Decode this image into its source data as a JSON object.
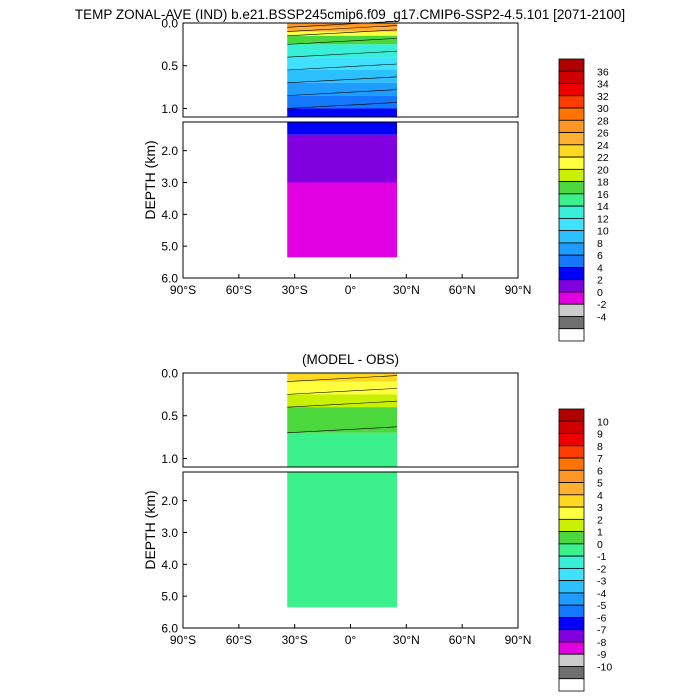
{
  "title": "TEMP ZONAL-AVE (IND) b.e21.BSSP245cmip6.f09_g17.CMIP6-SSP2-4.5.101 [2071-2100]",
  "chart_data": [
    {
      "type": "heatmap",
      "title": "",
      "ylabel": "DEPTH (km)",
      "x_ticks": [
        "90°S",
        "60°S",
        "30°S",
        "0°",
        "30°N",
        "60°N",
        "90°N"
      ],
      "y_ticks_upper": [
        "0.0",
        "0.5",
        "1.0"
      ],
      "y_ticks_lower": [
        "2.0",
        "3.0",
        "4.0",
        "5.0",
        "6.0"
      ],
      "xlim": [
        -90,
        90
      ],
      "ylim_upper_km": [
        0,
        1.1
      ],
      "ylim_lower_km": [
        1.1,
        6.0
      ],
      "x_data_extent": [
        -34,
        25
      ],
      "colorbar": {
        "labels": [
          "36",
          "34",
          "32",
          "30",
          "28",
          "26",
          "24",
          "22",
          "20",
          "18",
          "16",
          "14",
          "12",
          "10",
          "8",
          "6",
          "4",
          "2",
          "0",
          "-2",
          "-4"
        ],
        "colors": [
          "#b00000",
          "#d00000",
          "#ef0000",
          "#ff3c00",
          "#ff7400",
          "#ff9624",
          "#ffb030",
          "#ffd820",
          "#ffff40",
          "#c8f000",
          "#4cd83c",
          "#3cf08c",
          "#38f0d8",
          "#40e0ff",
          "#2cc0ff",
          "#1e9cff",
          "#1478ff",
          "#0000f8",
          "#8000e0",
          "#e000e0",
          "#cccccc",
          "#707070",
          "#ffffff"
        ]
      },
      "profile": [
        {
          "depth_km": 0.0,
          "temp_c": 28
        },
        {
          "depth_km": 0.05,
          "temp_c": 26
        },
        {
          "depth_km": 0.1,
          "temp_c": 22
        },
        {
          "depth_km": 0.15,
          "temp_c": 18
        },
        {
          "depth_km": 0.25,
          "temp_c": 14
        },
        {
          "depth_km": 0.4,
          "temp_c": 12
        },
        {
          "depth_km": 0.55,
          "temp_c": 10
        },
        {
          "depth_km": 0.7,
          "temp_c": 8
        },
        {
          "depth_km": 0.85,
          "temp_c": 6
        },
        {
          "depth_km": 1.0,
          "temp_c": 4
        },
        {
          "depth_km": 1.5,
          "temp_c": 2
        },
        {
          "depth_km": 3.0,
          "temp_c": 0
        }
      ]
    },
    {
      "type": "heatmap",
      "title": "(MODEL - OBS)",
      "ylabel": "DEPTH (km)",
      "x_ticks": [
        "90°S",
        "60°S",
        "30°S",
        "0°",
        "30°N",
        "60°N",
        "90°N"
      ],
      "y_ticks_upper": [
        "0.0",
        "0.5",
        "1.0"
      ],
      "y_ticks_lower": [
        "2.0",
        "3.0",
        "4.0",
        "5.0",
        "6.0"
      ],
      "xlim": [
        -90,
        90
      ],
      "ylim_upper_km": [
        0,
        1.1
      ],
      "ylim_lower_km": [
        1.1,
        6.0
      ],
      "x_data_extent": [
        -34,
        25
      ],
      "colorbar": {
        "labels": [
          "10",
          "9",
          "8",
          "7",
          "6",
          "5",
          "4",
          "3",
          "2",
          "1",
          "0",
          "-1",
          "-2",
          "-3",
          "-4",
          "-5",
          "-6",
          "-7",
          "-8",
          "-9",
          "-10"
        ],
        "colors": [
          "#b00000",
          "#d00000",
          "#ef0000",
          "#ff3c00",
          "#ff7400",
          "#ff9624",
          "#ffb030",
          "#ffd820",
          "#ffff40",
          "#c8f000",
          "#4cd83c",
          "#3cf08c",
          "#38f0d8",
          "#40e0ff",
          "#2cc0ff",
          "#1e9cff",
          "#1478ff",
          "#0000f8",
          "#8000e0",
          "#e000e0",
          "#cccccc",
          "#707070",
          "#ffffff"
        ]
      },
      "profile": [
        {
          "depth_km": 0.0,
          "diff_c": 4
        },
        {
          "depth_km": 0.1,
          "diff_c": 3
        },
        {
          "depth_km": 0.25,
          "diff_c": 2
        },
        {
          "depth_km": 0.4,
          "diff_c": 1
        },
        {
          "depth_km": 0.7,
          "diff_c": 0
        },
        {
          "depth_km": 3.0,
          "diff_c": 0
        }
      ]
    }
  ]
}
